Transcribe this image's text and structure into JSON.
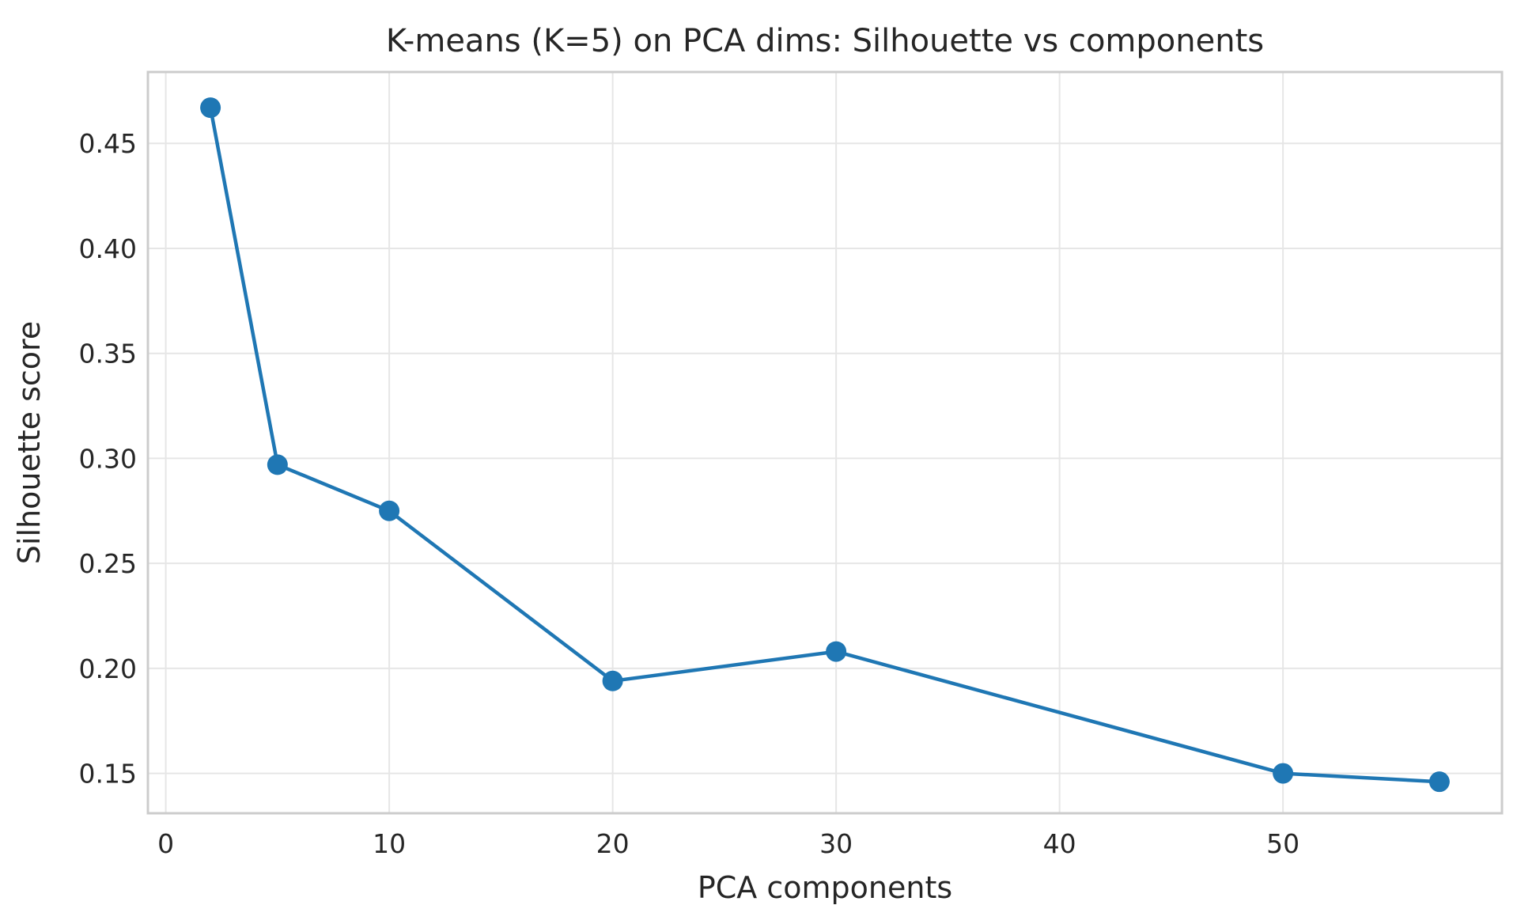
{
  "chart_data": {
    "type": "line",
    "title": "K-means (K=5) on PCA dims: Silhouette vs components",
    "xlabel": "PCA components",
    "ylabel": "Silhouette score",
    "xlim": [
      -0.8,
      59.8
    ],
    "ylim": [
      0.131,
      0.484
    ],
    "x_ticks": [
      0,
      10,
      20,
      30,
      40,
      50
    ],
    "x_tick_labels": [
      "0",
      "10",
      "20",
      "30",
      "40",
      "50"
    ],
    "y_ticks": [
      0.15,
      0.2,
      0.25,
      0.3,
      0.35,
      0.4,
      0.45
    ],
    "y_tick_labels": [
      "0.15",
      "0.20",
      "0.25",
      "0.30",
      "0.35",
      "0.40",
      "0.45"
    ],
    "grid": true,
    "series": [
      {
        "x": [
          2,
          5,
          10,
          20,
          30,
          50,
          57
        ],
        "y": [
          0.467,
          0.297,
          0.275,
          0.194,
          0.208,
          0.15,
          0.146
        ],
        "color": "#1f77b4",
        "marker": "circle"
      }
    ]
  }
}
